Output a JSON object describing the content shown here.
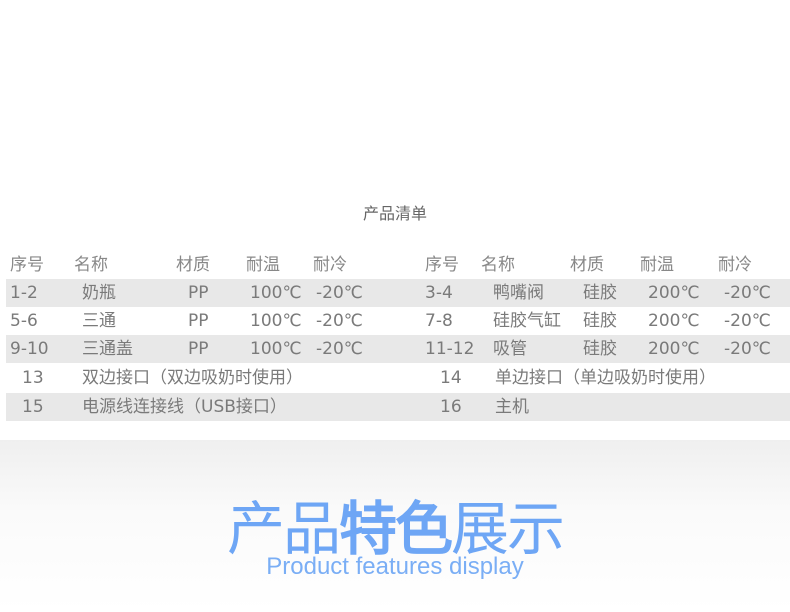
{
  "list_title": "产品清单",
  "headers": [
    "序号",
    "名称",
    "材质",
    "耐温",
    "耐冷"
  ],
  "left_rows": [
    [
      "1-2",
      "奶瓶",
      "PP",
      "100℃",
      "-20℃"
    ],
    [
      "5-6",
      "三通",
      "PP",
      "100℃",
      "-20℃"
    ],
    [
      "9-10",
      "三通盖",
      "PP",
      "100℃",
      "-20℃"
    ],
    [
      "13",
      "双边接口（双边吸奶时使用）"
    ],
    [
      "15",
      "电源线连接线（USB接口）"
    ]
  ],
  "right_rows": [
    [
      "3-4",
      "鸭嘴阀",
      "硅胶",
      "200℃",
      "-20℃"
    ],
    [
      "7-8",
      "硅胶气缸",
      "硅胶",
      "200℃",
      "-20℃"
    ],
    [
      "11-12",
      "吸管",
      "硅胶",
      "200℃",
      "-20℃"
    ],
    [
      "14",
      "单边接口（单边吸奶时使用）"
    ],
    [
      "16",
      "主机"
    ]
  ],
  "feature_title": {
    "part1": "产品",
    "bold": "特色",
    "part2": "展示"
  },
  "feature_subtitle": "Product features display",
  "colors": {
    "accent": "#6ea6f5",
    "band": "#e8e8e8",
    "text": "#7a7a7a"
  }
}
